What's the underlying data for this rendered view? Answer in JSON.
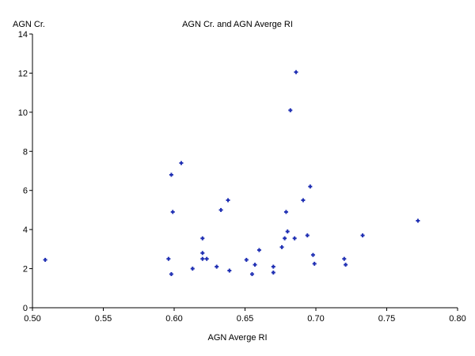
{
  "chart_data": {
    "type": "scatter",
    "title": "AGN Cr. and AGN Averge RI",
    "xlabel": "AGN Averge RI",
    "ylabel": "AGN Cr.",
    "xlim": [
      0.5,
      0.8
    ],
    "ylim": [
      0,
      14
    ],
    "x_ticks": [
      "0.50",
      "0.55",
      "0.60",
      "0.65",
      "0.70",
      "0.75",
      "0.80"
    ],
    "y_ticks": [
      "0",
      "2",
      "4",
      "6",
      "8",
      "10",
      "12",
      "14"
    ],
    "grid": false,
    "marker_color": "#1f2fb3",
    "points": [
      {
        "x": 0.509,
        "y": 2.45
      },
      {
        "x": 0.596,
        "y": 2.5
      },
      {
        "x": 0.598,
        "y": 1.72
      },
      {
        "x": 0.598,
        "y": 6.8
      },
      {
        "x": 0.599,
        "y": 4.9
      },
      {
        "x": 0.605,
        "y": 7.4
      },
      {
        "x": 0.613,
        "y": 2.0
      },
      {
        "x": 0.62,
        "y": 3.55
      },
      {
        "x": 0.62,
        "y": 2.8
      },
      {
        "x": 0.62,
        "y": 2.5
      },
      {
        "x": 0.623,
        "y": 2.5
      },
      {
        "x": 0.63,
        "y": 2.1
      },
      {
        "x": 0.633,
        "y": 5.0
      },
      {
        "x": 0.638,
        "y": 5.5
      },
      {
        "x": 0.639,
        "y": 1.9
      },
      {
        "x": 0.651,
        "y": 2.45
      },
      {
        "x": 0.655,
        "y": 1.72
      },
      {
        "x": 0.657,
        "y": 2.2
      },
      {
        "x": 0.66,
        "y": 2.95
      },
      {
        "x": 0.67,
        "y": 2.1
      },
      {
        "x": 0.67,
        "y": 1.8
      },
      {
        "x": 0.676,
        "y": 3.1
      },
      {
        "x": 0.678,
        "y": 3.55
      },
      {
        "x": 0.679,
        "y": 4.9
      },
      {
        "x": 0.68,
        "y": 3.9
      },
      {
        "x": 0.682,
        "y": 10.1
      },
      {
        "x": 0.685,
        "y": 3.55
      },
      {
        "x": 0.686,
        "y": 12.05
      },
      {
        "x": 0.691,
        "y": 5.5
      },
      {
        "x": 0.694,
        "y": 3.7
      },
      {
        "x": 0.696,
        "y": 6.2
      },
      {
        "x": 0.698,
        "y": 2.7
      },
      {
        "x": 0.699,
        "y": 2.25
      },
      {
        "x": 0.72,
        "y": 2.5
      },
      {
        "x": 0.721,
        "y": 2.2
      },
      {
        "x": 0.733,
        "y": 3.7
      },
      {
        "x": 0.772,
        "y": 4.45
      }
    ]
  }
}
